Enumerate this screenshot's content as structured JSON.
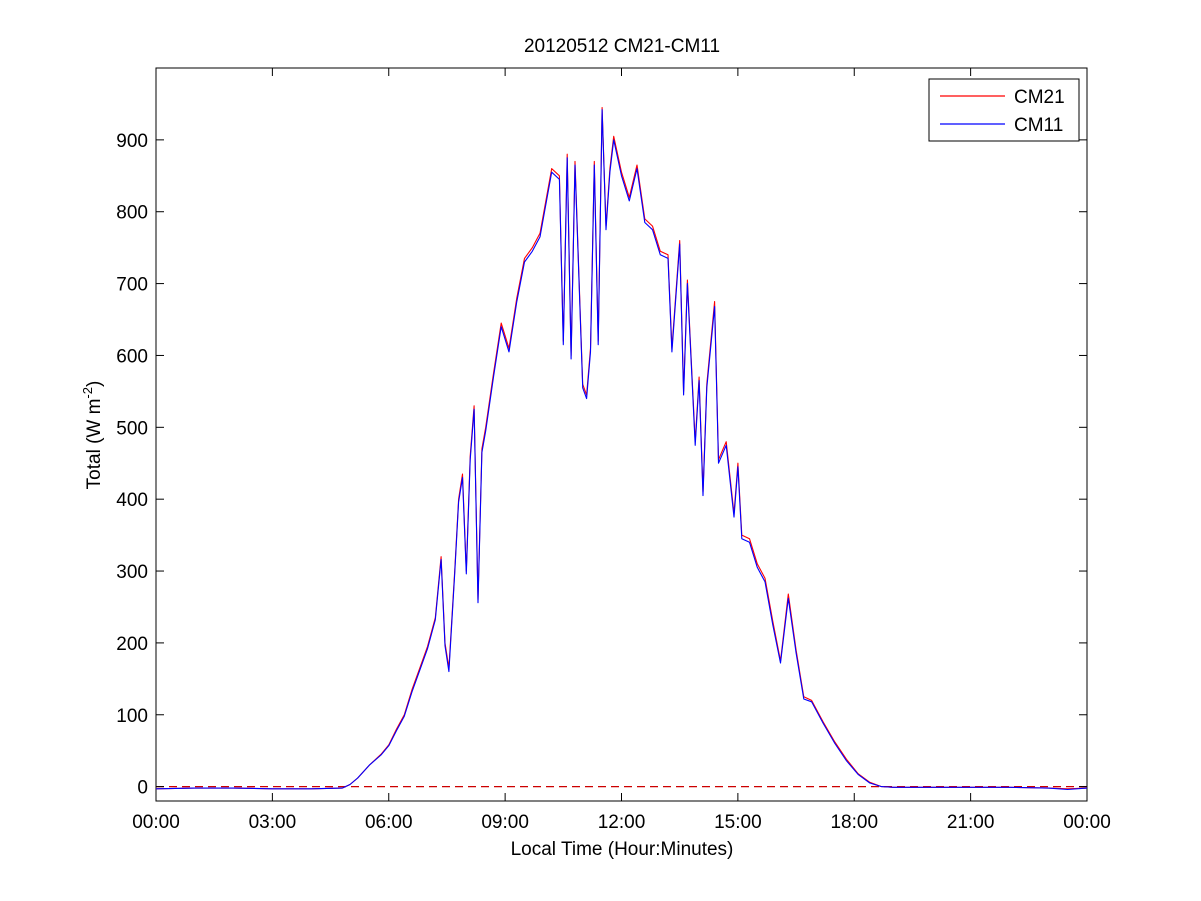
{
  "chart_data": {
    "type": "line",
    "title": "20120512 CM21-CM11",
    "xlabel": "Local Time (Hour:Minutes)",
    "ylabel_main": "Total (W m",
    "ylabel_sup": "-2",
    "ylabel_tail": ")",
    "xlim": [
      0,
      24
    ],
    "ylim": [
      -20,
      1000
    ],
    "x_ticks": [
      0,
      3,
      6,
      9,
      12,
      15,
      18,
      21,
      24
    ],
    "x_tick_labels": [
      "00:00",
      "03:00",
      "06:00",
      "09:00",
      "12:00",
      "15:00",
      "18:00",
      "21:00",
      "00:00"
    ],
    "y_ticks": [
      0,
      100,
      200,
      300,
      400,
      500,
      600,
      700,
      800,
      900
    ],
    "y_tick_labels": [
      "0",
      "100",
      "200",
      "300",
      "400",
      "500",
      "600",
      "700",
      "800",
      "900"
    ],
    "legend_position": "top-right",
    "grid": false,
    "reference_line": {
      "y": 0,
      "style": "dashed",
      "color": "#cc0000"
    },
    "series": [
      {
        "name": "CM21",
        "color": "#ff0000",
        "points": [
          [
            0,
            -3
          ],
          [
            1,
            -2
          ],
          [
            2,
            -2
          ],
          [
            3,
            -3
          ],
          [
            4,
            -3
          ],
          [
            4.8,
            -2
          ],
          [
            5.0,
            3
          ],
          [
            5.2,
            12
          ],
          [
            5.5,
            30
          ],
          [
            5.8,
            45
          ],
          [
            6.0,
            58
          ],
          [
            6.2,
            80
          ],
          [
            6.4,
            100
          ],
          [
            6.6,
            135
          ],
          [
            6.8,
            165
          ],
          [
            7.0,
            195
          ],
          [
            7.2,
            235
          ],
          [
            7.35,
            320
          ],
          [
            7.45,
            200
          ],
          [
            7.55,
            165
          ],
          [
            7.7,
            300
          ],
          [
            7.8,
            400
          ],
          [
            7.9,
            435
          ],
          [
            8.0,
            300
          ],
          [
            8.1,
            460
          ],
          [
            8.2,
            530
          ],
          [
            8.3,
            260
          ],
          [
            8.4,
            470
          ],
          [
            8.5,
            500
          ],
          [
            8.7,
            575
          ],
          [
            8.9,
            645
          ],
          [
            9.1,
            610
          ],
          [
            9.3,
            680
          ],
          [
            9.5,
            735
          ],
          [
            9.7,
            750
          ],
          [
            9.9,
            770
          ],
          [
            10.0,
            800
          ],
          [
            10.2,
            860
          ],
          [
            10.4,
            850
          ],
          [
            10.5,
            620
          ],
          [
            10.6,
            880
          ],
          [
            10.7,
            600
          ],
          [
            10.8,
            870
          ],
          [
            11.0,
            560
          ],
          [
            11.1,
            545
          ],
          [
            11.2,
            610
          ],
          [
            11.3,
            870
          ],
          [
            11.4,
            620
          ],
          [
            11.5,
            945
          ],
          [
            11.6,
            780
          ],
          [
            11.7,
            860
          ],
          [
            11.8,
            905
          ],
          [
            12.0,
            855
          ],
          [
            12.2,
            820
          ],
          [
            12.4,
            865
          ],
          [
            12.6,
            790
          ],
          [
            12.8,
            780
          ],
          [
            13.0,
            745
          ],
          [
            13.2,
            740
          ],
          [
            13.3,
            610
          ],
          [
            13.5,
            760
          ],
          [
            13.6,
            550
          ],
          [
            13.7,
            705
          ],
          [
            13.9,
            480
          ],
          [
            14.0,
            570
          ],
          [
            14.1,
            410
          ],
          [
            14.2,
            560
          ],
          [
            14.4,
            675
          ],
          [
            14.5,
            455
          ],
          [
            14.7,
            480
          ],
          [
            14.9,
            380
          ],
          [
            15.0,
            450
          ],
          [
            15.1,
            350
          ],
          [
            15.3,
            345
          ],
          [
            15.5,
            310
          ],
          [
            15.7,
            290
          ],
          [
            15.9,
            230
          ],
          [
            16.1,
            175
          ],
          [
            16.3,
            268
          ],
          [
            16.5,
            190
          ],
          [
            16.7,
            125
          ],
          [
            16.9,
            120
          ],
          [
            17.2,
            90
          ],
          [
            17.5,
            62
          ],
          [
            17.8,
            38
          ],
          [
            18.1,
            18
          ],
          [
            18.4,
            6
          ],
          [
            18.7,
            0
          ],
          [
            19.0,
            -1
          ],
          [
            20,
            -1
          ],
          [
            21,
            -1
          ],
          [
            22,
            -1
          ],
          [
            23,
            -2
          ],
          [
            23.5,
            -3
          ],
          [
            24,
            -2
          ]
        ]
      },
      {
        "name": "CM11",
        "color": "#0000ff",
        "points": [
          [
            0,
            -3
          ],
          [
            1,
            -2
          ],
          [
            2,
            -2
          ],
          [
            3,
            -3
          ],
          [
            4,
            -3
          ],
          [
            4.8,
            -2
          ],
          [
            5.0,
            3
          ],
          [
            5.2,
            12
          ],
          [
            5.5,
            30
          ],
          [
            5.8,
            44
          ],
          [
            6.0,
            57
          ],
          [
            6.2,
            78
          ],
          [
            6.4,
            98
          ],
          [
            6.6,
            132
          ],
          [
            6.8,
            162
          ],
          [
            7.0,
            192
          ],
          [
            7.2,
            232
          ],
          [
            7.35,
            316
          ],
          [
            7.45,
            196
          ],
          [
            7.55,
            160
          ],
          [
            7.7,
            296
          ],
          [
            7.8,
            396
          ],
          [
            7.9,
            430
          ],
          [
            8.0,
            296
          ],
          [
            8.1,
            455
          ],
          [
            8.2,
            525
          ],
          [
            8.3,
            256
          ],
          [
            8.4,
            465
          ],
          [
            8.5,
            495
          ],
          [
            8.7,
            570
          ],
          [
            8.9,
            640
          ],
          [
            9.1,
            605
          ],
          [
            9.3,
            675
          ],
          [
            9.5,
            730
          ],
          [
            9.7,
            745
          ],
          [
            9.9,
            765
          ],
          [
            10.0,
            795
          ],
          [
            10.2,
            855
          ],
          [
            10.4,
            845
          ],
          [
            10.5,
            615
          ],
          [
            10.6,
            875
          ],
          [
            10.7,
            595
          ],
          [
            10.8,
            865
          ],
          [
            11.0,
            555
          ],
          [
            11.1,
            540
          ],
          [
            11.2,
            605
          ],
          [
            11.3,
            865
          ],
          [
            11.4,
            615
          ],
          [
            11.5,
            942
          ],
          [
            11.6,
            775
          ],
          [
            11.7,
            855
          ],
          [
            11.8,
            900
          ],
          [
            12.0,
            850
          ],
          [
            12.2,
            815
          ],
          [
            12.4,
            860
          ],
          [
            12.6,
            785
          ],
          [
            12.8,
            775
          ],
          [
            13.0,
            740
          ],
          [
            13.2,
            735
          ],
          [
            13.3,
            605
          ],
          [
            13.5,
            755
          ],
          [
            13.6,
            545
          ],
          [
            13.7,
            700
          ],
          [
            13.9,
            475
          ],
          [
            14.0,
            565
          ],
          [
            14.1,
            405
          ],
          [
            14.2,
            555
          ],
          [
            14.4,
            668
          ],
          [
            14.5,
            450
          ],
          [
            14.7,
            475
          ],
          [
            14.9,
            375
          ],
          [
            15.0,
            445
          ],
          [
            15.1,
            345
          ],
          [
            15.3,
            340
          ],
          [
            15.5,
            305
          ],
          [
            15.7,
            285
          ],
          [
            15.9,
            225
          ],
          [
            16.1,
            172
          ],
          [
            16.3,
            262
          ],
          [
            16.5,
            186
          ],
          [
            16.7,
            122
          ],
          [
            16.9,
            118
          ],
          [
            17.2,
            88
          ],
          [
            17.5,
            60
          ],
          [
            17.8,
            36
          ],
          [
            18.1,
            17
          ],
          [
            18.4,
            5
          ],
          [
            18.7,
            0
          ],
          [
            19.0,
            -1
          ],
          [
            20,
            -1
          ],
          [
            21,
            -1
          ],
          [
            22,
            -1
          ],
          [
            23,
            -2
          ],
          [
            23.5,
            -4
          ],
          [
            24,
            -2
          ]
        ]
      }
    ]
  }
}
